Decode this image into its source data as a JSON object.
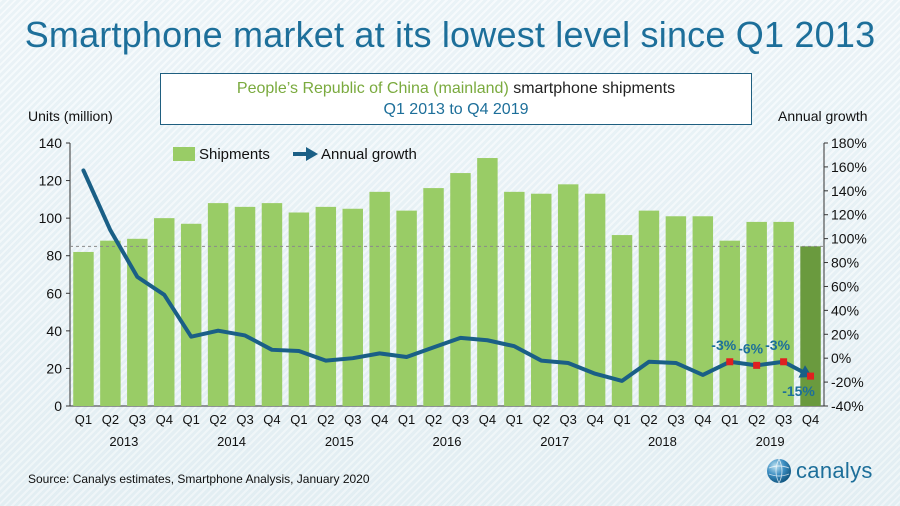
{
  "header": {
    "title": "Smartphone market at its lowest level since Q1 2013",
    "subtitle_part1": "People’s Republic of China (mainland)",
    "subtitle_part2": "smartphone shipments",
    "subtitle_line2": "Q1 2013 to Q4 2019"
  },
  "footer": {
    "source": "Source:  Canalys estimates, Smartphone  Analysis, January 2020",
    "brand": "canalys"
  },
  "colors": {
    "bar": "#99cc66",
    "bar_highlight": "#6a9a3e",
    "line": "#1a5f86",
    "marker": "#e02020",
    "label": "#1d6f9a",
    "reference_line": "#8a8a8a"
  },
  "chart_data": {
    "type": "bar",
    "ylabel": "Units (million)",
    "y2label": "Annual growth",
    "ylim": [
      0,
      140
    ],
    "yticks": [
      0,
      20,
      40,
      60,
      80,
      100,
      120,
      140
    ],
    "y2lim": [
      -40,
      180
    ],
    "y2ticks": [
      "-40%",
      "-20%",
      "0%",
      "20%",
      "40%",
      "60%",
      "80%",
      "100%",
      "120%",
      "140%",
      "160%",
      "180%"
    ],
    "y2tick_values": [
      -40,
      -20,
      0,
      20,
      40,
      60,
      80,
      100,
      120,
      140,
      160,
      180
    ],
    "legend": [
      "Shipments",
      "Annual growth"
    ],
    "legend_position": "top-left",
    "categories": [
      "Q1",
      "Q2",
      "Q3",
      "Q4",
      "Q1",
      "Q2",
      "Q3",
      "Q4",
      "Q1",
      "Q2",
      "Q3",
      "Q4",
      "Q1",
      "Q2",
      "Q3",
      "Q4",
      "Q1",
      "Q2",
      "Q3",
      "Q4",
      "Q1",
      "Q2",
      "Q3",
      "Q4",
      "Q1",
      "Q2",
      "Q3",
      "Q4"
    ],
    "years": [
      "2013",
      "2014",
      "2015",
      "2016",
      "2017",
      "2018",
      "2019"
    ],
    "reference_value": 85,
    "series": [
      {
        "name": "Shipments",
        "axis": "left",
        "values": [
          82,
          88,
          89,
          100,
          97,
          108,
          106,
          108,
          103,
          106,
          105,
          114,
          104,
          116,
          124,
          132,
          114,
          113,
          118,
          113,
          91,
          104,
          101,
          101,
          88,
          98,
          98,
          85
        ]
      },
      {
        "name": "Annual growth",
        "axis": "right",
        "values": [
          157,
          107,
          68,
          53,
          18,
          23,
          19,
          7,
          6,
          -2,
          0,
          4,
          1,
          9,
          17,
          15,
          10,
          -2,
          -4,
          -13,
          -19,
          -3,
          -4,
          -14,
          -3,
          -6,
          -3,
          -15
        ]
      }
    ],
    "annotations": [
      {
        "index": 24,
        "text": "-3%"
      },
      {
        "index": 25,
        "text": "-6%"
      },
      {
        "index": 26,
        "text": "-3%"
      },
      {
        "index": 27,
        "text": "-15%"
      }
    ]
  }
}
